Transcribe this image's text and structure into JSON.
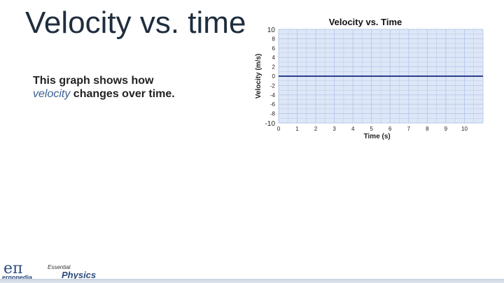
{
  "slide": {
    "title": "Velocity vs. time",
    "body_line1": "This graph shows how",
    "body_em": "velocity",
    "body_rest": " changes over time."
  },
  "logo": {
    "mark": "eπ",
    "name": "ergopedia",
    "subtitle": "Essential",
    "product": "Physics"
  },
  "colors": {
    "plot_bg": "#dde7f7",
    "grid": "#b5c8e8",
    "line": "#2c3f8a"
  },
  "chart_data": {
    "type": "line",
    "title": "Velocity vs. Time",
    "xlabel": "Time (s)",
    "ylabel": "Velocity (m/s)",
    "xlim": [
      0,
      11
    ],
    "ylim": [
      -10,
      10
    ],
    "x_ticks": [
      0,
      1,
      2,
      3,
      4,
      5,
      6,
      7,
      8,
      9,
      10
    ],
    "y_ticks": [
      10,
      8,
      6,
      4,
      2,
      0,
      -2,
      -4,
      -6,
      -8,
      -10
    ],
    "grid": true,
    "series": [
      {
        "x": [
          0,
          11
        ],
        "y": [
          0,
          0
        ]
      }
    ]
  }
}
